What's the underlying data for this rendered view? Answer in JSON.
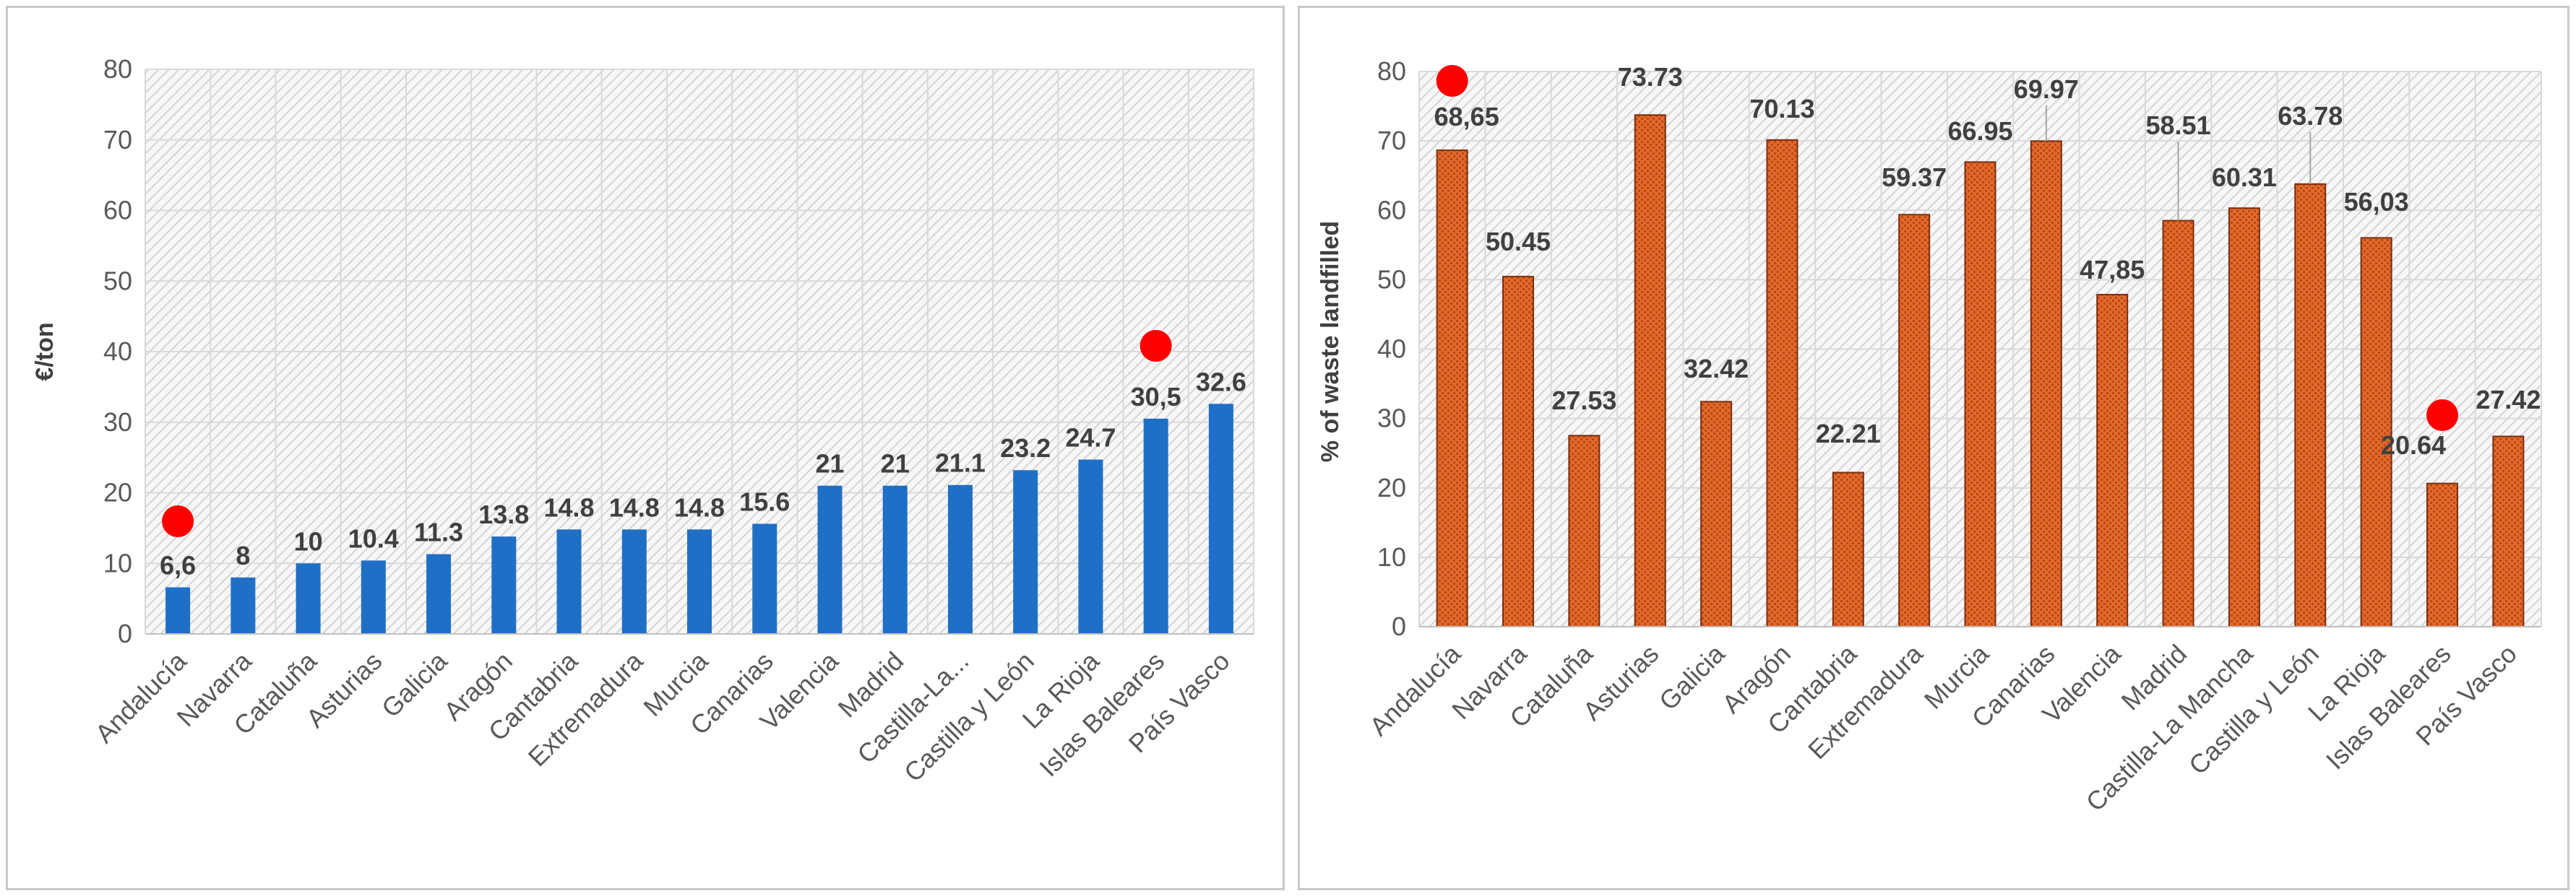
{
  "chart_data": [
    {
      "type": "bar",
      "title": "",
      "xlabel": "",
      "ylabel": "€/ton",
      "ylim": [
        0,
        80
      ],
      "yticks": [
        0,
        10,
        20,
        30,
        40,
        50,
        60,
        70,
        80
      ],
      "grid": true,
      "categories": [
        "Andalucía",
        "Navarra",
        "Cataluña",
        "Asturias",
        "Galicia",
        "Aragón",
        "Cantabria",
        "Extremadura",
        "Murcia",
        "Canarias",
        "Valencia",
        "Madrid",
        "Castilla-La...",
        "Castilla y León",
        "La Rioja",
        "Islas Baleares",
        "País Vasco"
      ],
      "values": [
        6.6,
        8,
        10,
        10.4,
        11.3,
        13.8,
        14.8,
        14.8,
        14.8,
        15.6,
        21,
        21,
        21.1,
        23.2,
        24.7,
        30.5,
        32.6
      ],
      "data_labels": [
        "6,6",
        "8",
        "10",
        "10.4",
        "11.3",
        "13.8",
        "14.8",
        "14.8",
        "14.8",
        "15.6",
        "21",
        "21",
        "21.1",
        "23.2",
        "24.7",
        "30,5",
        "32.6"
      ],
      "highlighted": [
        "Andalucía",
        "Islas Baleares"
      ],
      "colors": {
        "bar": "#1f6fc6",
        "marker": "#ff0000",
        "grid": "#d9d9d9",
        "hatch": "#d4d4d4"
      }
    },
    {
      "type": "bar",
      "title": "",
      "xlabel": "",
      "ylabel": "% of waste landfilled",
      "ylim": [
        0,
        80
      ],
      "yticks": [
        0,
        10,
        20,
        30,
        40,
        50,
        60,
        70,
        80
      ],
      "grid": true,
      "categories": [
        "Andalucía",
        "Navarra",
        "Cataluña",
        "Asturias",
        "Galicia",
        "Aragón",
        "Cantabria",
        "Extremadura",
        "Murcia",
        "Canarias",
        "Valencia",
        "Madrid",
        "Castilla-La Mancha",
        "Castilla y León",
        "La Rioja",
        "Islas Baleares",
        "País Vasco"
      ],
      "values": [
        68.65,
        50.45,
        27.53,
        73.73,
        32.42,
        70.13,
        22.21,
        59.37,
        66.95,
        69.97,
        47.85,
        58.51,
        60.31,
        63.78,
        56.03,
        20.64,
        27.42
      ],
      "data_labels": [
        "68,65",
        "50.45",
        "27.53",
        "73.73",
        "32.42",
        "70.13",
        "22.21",
        "59.37",
        "66.95",
        "69.97",
        "47,85",
        "58.51",
        "60.31",
        "63.78",
        "56,03",
        "20.64",
        "27.42"
      ],
      "highlighted": [
        "Andalucía",
        "Islas Baleares"
      ],
      "colors": {
        "bar": "#e2692a",
        "bar_pattern": "#b8471a",
        "bar_border": "#7a2e0e",
        "marker": "#ff0000",
        "grid": "#d9d9d9",
        "hatch": "#d4d4d4"
      }
    }
  ]
}
